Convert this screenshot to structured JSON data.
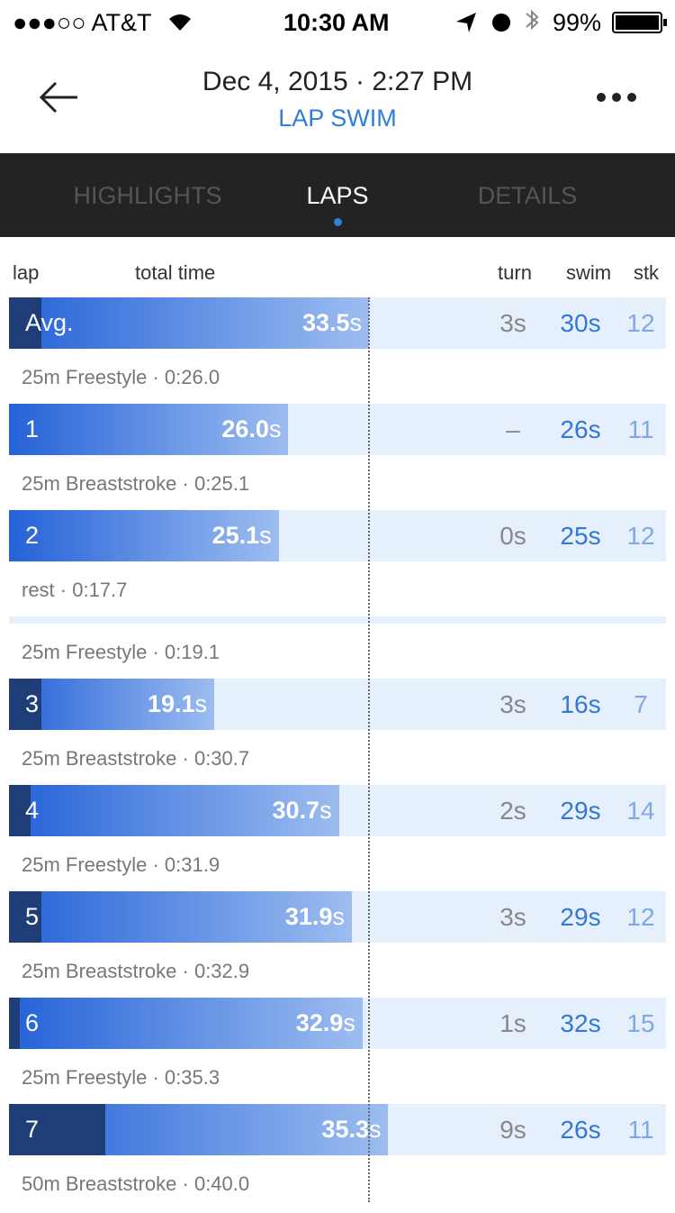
{
  "status_bar": {
    "carrier": "●●●○○ AT&T",
    "time": "10:30 AM",
    "battery": "99%"
  },
  "header": {
    "title": "Dec 4, 2015 · 2:27 PM",
    "subtitle": "LAP SWIM"
  },
  "tabs": [
    "HIGHLIGHTS",
    "LAPS",
    "DETAILS"
  ],
  "active_tab": 1,
  "columns": [
    "lap",
    "total time",
    "turn",
    "swim",
    "stk"
  ],
  "rows": [
    {
      "kind": "bar",
      "lap": "Avg.",
      "time": "33.5",
      "unit": "s",
      "turn": "3s",
      "swim": "30s",
      "stk": "12"
    },
    {
      "kind": "note",
      "text": "25m  Freestyle · 0:26.0"
    },
    {
      "kind": "bar",
      "lap": "1",
      "time": "26.0",
      "unit": "s",
      "turn": "–",
      "swim": "26s",
      "stk": "11"
    },
    {
      "kind": "note",
      "text": "25m  Breaststroke · 0:25.1"
    },
    {
      "kind": "bar",
      "lap": "2",
      "time": "25.1",
      "unit": "s",
      "turn": "0s",
      "swim": "25s",
      "stk": "12"
    },
    {
      "kind": "note",
      "text": "rest · 0:17.7"
    },
    {
      "kind": "divider"
    },
    {
      "kind": "note",
      "text": "25m  Freestyle · 0:19.1"
    },
    {
      "kind": "bar",
      "lap": "3",
      "time": "19.1",
      "unit": "s",
      "turn": "3s",
      "swim": "16s",
      "stk": "7"
    },
    {
      "kind": "note",
      "text": "25m  Breaststroke · 0:30.7"
    },
    {
      "kind": "bar",
      "lap": "4",
      "time": "30.7",
      "unit": "s",
      "turn": "2s",
      "swim": "29s",
      "stk": "14"
    },
    {
      "kind": "note",
      "text": "25m  Freestyle · 0:31.9"
    },
    {
      "kind": "bar",
      "lap": "5",
      "time": "31.9",
      "unit": "s",
      "turn": "3s",
      "swim": "29s",
      "stk": "12"
    },
    {
      "kind": "note",
      "text": "25m  Breaststroke · 0:32.9"
    },
    {
      "kind": "bar",
      "lap": "6",
      "time": "32.9",
      "unit": "s",
      "turn": "1s",
      "swim": "32s",
      "stk": "15"
    },
    {
      "kind": "note",
      "text": "25m  Freestyle · 0:35.3"
    },
    {
      "kind": "bar",
      "lap": "7",
      "time": "35.3",
      "unit": "s",
      "turn": "9s",
      "swim": "26s",
      "stk": "11"
    },
    {
      "kind": "note",
      "text": "50m  Breaststroke · 0:40.0"
    }
  ]
}
